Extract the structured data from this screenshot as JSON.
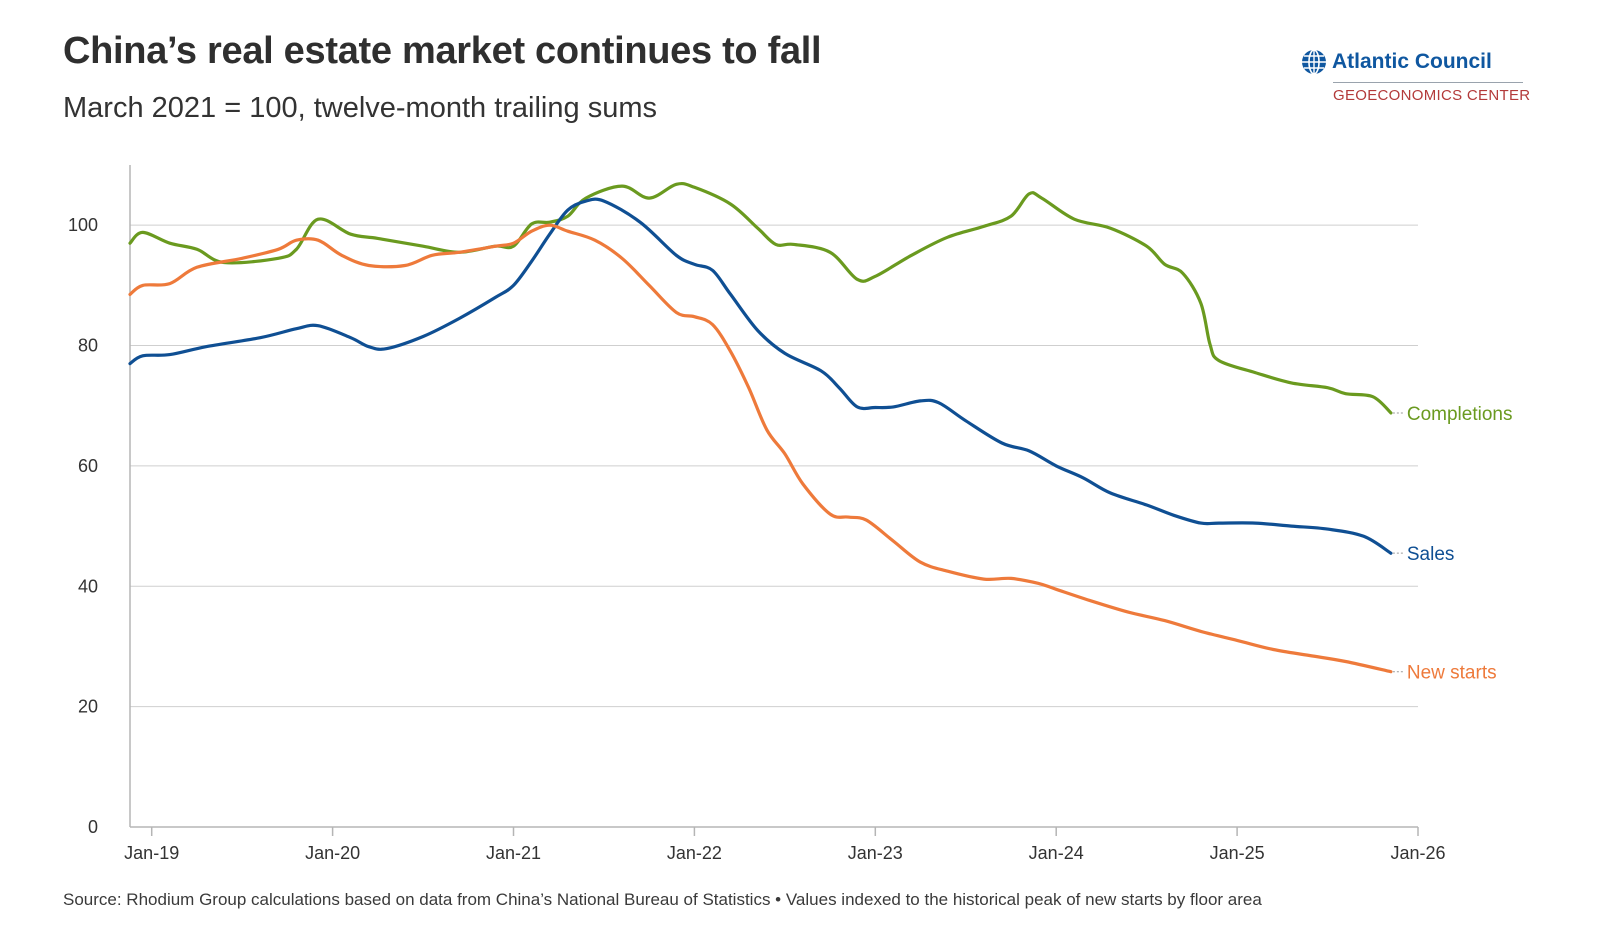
{
  "header": {
    "title": "China’s real estate market continues to fall",
    "subtitle": "March 2021 = 100, twelve-month trailing sums"
  },
  "logo": {
    "name": "Atlantic Council",
    "center": "GEOECONOMICS CENTER",
    "icon": "globe-icon",
    "colors": {
      "name": "#0f57a0",
      "center": "#b33a3a"
    }
  },
  "footer": {
    "source": "Source: Rhodium Group calculations based on data from China’s National Bureau of Statistics • Values indexed to the historical peak of new starts by floor area"
  },
  "chart_data": {
    "type": "line",
    "title": "China’s real estate market continues to fall",
    "subtitle": "March 2021 = 100, twelve-month trailing sums",
    "xlabel": "",
    "ylabel": "",
    "x_ticks": [
      "Jan-19",
      "Jan-20",
      "Jan-21",
      "Jan-22",
      "Jan-23",
      "Jan-24",
      "Jan-25",
      "Jan-26"
    ],
    "xlim": [
      2018.88,
      2026.0
    ],
    "ylim": [
      0,
      110
    ],
    "y_ticks": [
      0,
      20,
      40,
      60,
      80,
      100
    ],
    "grid": true,
    "legend": "inline labels at series ends",
    "series": [
      {
        "name": "Completions",
        "color": "#6a9a1f",
        "x": [
          2018.88,
          2018.95,
          2019.1,
          2019.25,
          2019.4,
          2019.7,
          2019.8,
          2019.92,
          2020.1,
          2020.25,
          2020.5,
          2020.7,
          2020.9,
          2021.0,
          2021.1,
          2021.2,
          2021.3,
          2021.4,
          2021.6,
          2021.75,
          2021.9,
          2022.0,
          2022.2,
          2022.35,
          2022.45,
          2022.55,
          2022.75,
          2022.9,
          2023.0,
          2023.2,
          2023.4,
          2023.6,
          2023.75,
          2023.85,
          2023.92,
          2024.1,
          2024.3,
          2024.5,
          2024.6,
          2024.7,
          2024.8,
          2024.85,
          2024.9,
          2025.1,
          2025.3,
          2025.5,
          2025.6,
          2025.75,
          2025.85
        ],
        "values": [
          97,
          98.8,
          97,
          96,
          93.8,
          94.5,
          96,
          101,
          98.5,
          97.8,
          96.5,
          95.5,
          96.5,
          96.5,
          100.2,
          100.5,
          101.5,
          104.5,
          106.5,
          104.5,
          106.8,
          106.3,
          103.5,
          99.5,
          96.8,
          96.8,
          95.5,
          91,
          91.5,
          95,
          98,
          99.8,
          101.5,
          105.2,
          104.5,
          101,
          99.5,
          96.5,
          93.5,
          92,
          87,
          80.2,
          77.5,
          75.5,
          73.8,
          73,
          72,
          71.5,
          68.8
        ]
      },
      {
        "name": "Sales",
        "color": "#0f4f93",
        "x": [
          2018.88,
          2018.95,
          2019.1,
          2019.3,
          2019.6,
          2019.8,
          2019.92,
          2020.1,
          2020.2,
          2020.3,
          2020.5,
          2020.7,
          2020.9,
          2021.0,
          2021.1,
          2021.2,
          2021.3,
          2021.4,
          2021.5,
          2021.7,
          2021.9,
          2022.0,
          2022.1,
          2022.2,
          2022.35,
          2022.5,
          2022.7,
          2022.8,
          2022.9,
          2023.0,
          2023.1,
          2023.25,
          2023.35,
          2023.5,
          2023.7,
          2023.85,
          2024.0,
          2024.15,
          2024.3,
          2024.5,
          2024.65,
          2024.8,
          2024.9,
          2025.1,
          2025.3,
          2025.5,
          2025.7,
          2025.85
        ],
        "values": [
          77,
          78.3,
          78.5,
          79.8,
          81.3,
          82.8,
          83.3,
          81.3,
          79.8,
          79.5,
          81.5,
          84.5,
          88,
          90,
          94,
          98.5,
          102.5,
          104,
          104,
          100.5,
          95,
          93.5,
          92.5,
          88.5,
          82.5,
          78.7,
          75.8,
          73,
          69.8,
          69.7,
          69.8,
          70.8,
          70.5,
          67.5,
          63.8,
          62.5,
          60,
          58,
          55.5,
          53.5,
          51.8,
          50.5,
          50.5,
          50.5,
          50,
          49.5,
          48.3,
          45.5
        ]
      },
      {
        "name": "New starts",
        "color": "#ee7a3b",
        "x": [
          2018.88,
          2018.95,
          2019.1,
          2019.25,
          2019.5,
          2019.7,
          2019.8,
          2019.92,
          2020.05,
          2020.2,
          2020.4,
          2020.55,
          2020.7,
          2020.9,
          2021.0,
          2021.1,
          2021.2,
          2021.3,
          2021.45,
          2021.6,
          2021.75,
          2021.9,
          2022.0,
          2022.1,
          2022.2,
          2022.3,
          2022.4,
          2022.5,
          2022.6,
          2022.75,
          2022.85,
          2022.95,
          2023.1,
          2023.25,
          2023.4,
          2023.6,
          2023.75,
          2023.9,
          2024.0,
          2024.2,
          2024.4,
          2024.6,
          2024.8,
          2025.0,
          2025.2,
          2025.4,
          2025.6,
          2025.85
        ],
        "values": [
          88.5,
          90,
          90.3,
          93,
          94.5,
          96,
          97.5,
          97.5,
          95,
          93.3,
          93.3,
          95,
          95.5,
          96.5,
          97,
          99,
          100,
          99,
          97.5,
          94.5,
          90,
          85.5,
          84.8,
          83.5,
          79,
          73,
          66,
          62,
          57,
          52,
          51.5,
          51,
          47.5,
          44,
          42.5,
          41.2,
          41.3,
          40.5,
          39.5,
          37.5,
          35.7,
          34.3,
          32.5,
          31,
          29.5,
          28.5,
          27.5,
          25.8
        ]
      }
    ]
  }
}
